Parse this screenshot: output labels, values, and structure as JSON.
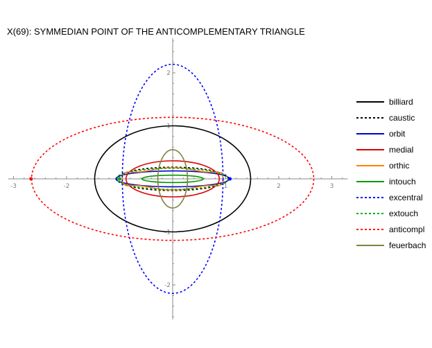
{
  "chart_data": {
    "type": "line",
    "title": "X(69): SYMMEDIAN POINT OF THE ANTICOMPLEMENTARY TRIANGLE",
    "xlabel": "",
    "ylabel": "",
    "xlim": [
      -3.1,
      3.3
    ],
    "ylim": [
      -2.65,
      2.65
    ],
    "x_ticks": [
      -3,
      -2,
      1,
      2,
      3
    ],
    "x_tick_labels": [
      "-3",
      "-2",
      "1",
      "2",
      "3"
    ],
    "y_ticks": [
      2,
      1,
      -1,
      -2
    ],
    "y_tick_labels": [
      "2",
      "1",
      "-1",
      "-2"
    ],
    "grid": false,
    "legend_position": "right",
    "series": [
      {
        "name": "billiard",
        "color": "#000000",
        "dashed": false,
        "shape": "ellipse",
        "cx": 0.0,
        "cy": 0.0,
        "rx": 1.47,
        "ry": 1.0
      },
      {
        "name": "caustic",
        "color": "#000000",
        "dashed": true,
        "shape": "ellipse",
        "cx": 0.0,
        "cy": 0.0,
        "rx": 1.05,
        "ry": 0.22
      },
      {
        "name": "orbit",
        "color": "#0000cc",
        "dashed": false,
        "shape": "ellipse",
        "cx": 0.0,
        "cy": 0.0,
        "rx": 1.07,
        "ry": 0.15
      },
      {
        "name": "medial",
        "color": "#dd0000",
        "dashed": false,
        "shape": "ellipse",
        "cx": 0.0,
        "cy": 0.0,
        "rx": 0.88,
        "ry": 0.34
      },
      {
        "name": "orthic",
        "color": "#ff8000",
        "dashed": false,
        "shape": "quartic",
        "cx": 0.0,
        "cy": 0.0,
        "rx": 0.95,
        "ry": 0.38
      },
      {
        "name": "intouch",
        "color": "#009900",
        "dashed": false,
        "shape": "ellipse",
        "cx": 0.0,
        "cy": 0.0,
        "rx": 0.58,
        "ry": 0.07
      },
      {
        "name": "excentral",
        "color": "#0000ff",
        "dashed": true,
        "shape": "ellipse",
        "cx": 0.0,
        "cy": 0.0,
        "rx": 0.95,
        "ry": 2.16
      },
      {
        "name": "extouch",
        "color": "#00aa00",
        "dashed": true,
        "shape": "ellipse",
        "cx": 0.0,
        "cy": 0.0,
        "rx": 1.05,
        "ry": 0.2
      },
      {
        "name": "anticompl",
        "color": "#ff0000",
        "dashed": true,
        "shape": "ellipse",
        "cx": 0.0,
        "cy": 0.0,
        "rx": 2.66,
        "ry": 1.16
      },
      {
        "name": "feuerbach",
        "color": "#808040",
        "dashed": false,
        "shape": "ellipse",
        "cx": 0.0,
        "cy": 0.0,
        "rx": 0.28,
        "ry": 0.55
      }
    ],
    "points": [
      {
        "x": -2.67,
        "y": 0.0,
        "color": "#ff0000"
      },
      {
        "x": -1.0,
        "y": 0.0,
        "color": "#00aa00"
      },
      {
        "x": 1.08,
        "y": 0.0,
        "color": "#0000ff"
      }
    ]
  }
}
